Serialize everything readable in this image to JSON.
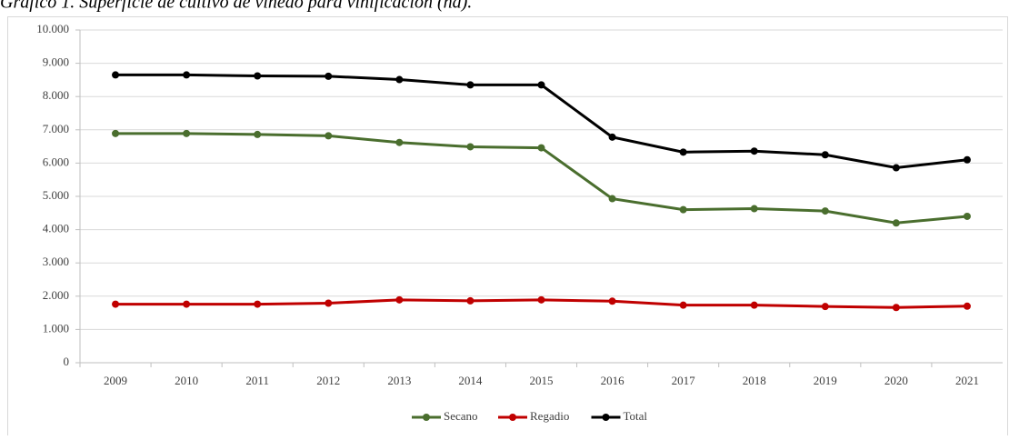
{
  "chart_data": {
    "type": "line",
    "title": "Gráfico 1. Superficie de cultivo de viñedo para vinificación (ha).",
    "categories": [
      "2009",
      "2010",
      "2011",
      "2012",
      "2013",
      "2014",
      "2015",
      "2016",
      "2017",
      "2018",
      "2019",
      "2020",
      "2021"
    ],
    "series": [
      {
        "name": "Secano",
        "color": "#4a6e2e",
        "values": [
          6890,
          6890,
          6860,
          6820,
          6620,
          6490,
          6460,
          4930,
          4600,
          4630,
          4560,
          4200,
          4400
        ]
      },
      {
        "name": "Regadio",
        "color": "#c00000",
        "values": [
          1760,
          1760,
          1760,
          1790,
          1890,
          1860,
          1890,
          1850,
          1730,
          1730,
          1690,
          1660,
          1700
        ]
      },
      {
        "name": "Total",
        "color": "#000000",
        "values": [
          8650,
          8650,
          8620,
          8610,
          8510,
          8350,
          8350,
          6780,
          6330,
          6360,
          6250,
          5860,
          6100
        ]
      }
    ],
    "ylim": [
      0,
      10000
    ],
    "yticks": [
      0,
      {
        "value": 1000,
        "label": "1.000"
      },
      {
        "value": 2000,
        "label": "2.000"
      },
      {
        "value": 3000,
        "label": "3.000"
      },
      {
        "value": 4000,
        "label": "4.000"
      },
      {
        "value": 5000,
        "label": "5.000"
      },
      {
        "value": 6000,
        "label": "6.000"
      },
      {
        "value": 7000,
        "label": "7.000"
      },
      {
        "value": 8000,
        "label": "8.000"
      },
      {
        "value": 9000,
        "label": "9.000"
      },
      {
        "value": 10000,
        "label": "10.000"
      }
    ],
    "grid": true,
    "legend": "bottom"
  }
}
